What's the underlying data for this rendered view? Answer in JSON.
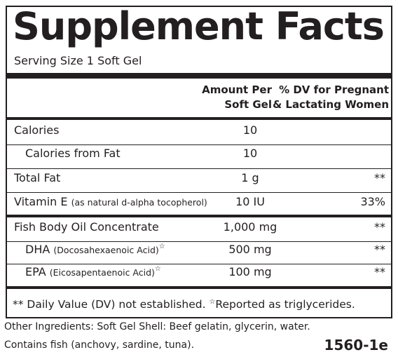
{
  "header": {
    "title": "Supplement Facts",
    "serving": "Serving Size 1 Soft Gel"
  },
  "columns": {
    "amount": [
      "Amount Per",
      "Soft Gel"
    ],
    "dv": [
      "% DV for Pregnant",
      "& Lactating Women"
    ]
  },
  "rows": [
    {
      "name": "Calories",
      "amount": "10"
    },
    {
      "name": "Calories from Fat",
      "amount": "10"
    },
    {
      "name": "Total Fat",
      "amount": "1 g",
      "dv": "**"
    },
    {
      "name": "Vitamin E",
      "note": "(as natural d-alpha tocopherol)",
      "amount": "10 IU",
      "dv": "33%"
    },
    {
      "name": "Fish Body Oil Concentrate",
      "amount": "1,000 mg",
      "dv": "**"
    },
    {
      "name": "DHA",
      "note": "(Docosahexaenoic Acid)",
      "mark": "☆",
      "amount": "500 mg",
      "dv": "**"
    },
    {
      "name": "EPA",
      "note": "(Eicosapentaenoic Acid)",
      "mark": "☆",
      "amount": "100 mg",
      "dv": "**"
    }
  ],
  "footnote": {
    "dv": "** Daily Value (DV) not established.",
    "mark": "☆",
    "star": "Reported as triglycerides."
  },
  "other": [
    "Other Ingredients:  Soft Gel Shell:  Beef gelatin, glycerin, water.",
    "Contains fish (anchovy, sardine, tuna)."
  ],
  "code": "1560-1e"
}
